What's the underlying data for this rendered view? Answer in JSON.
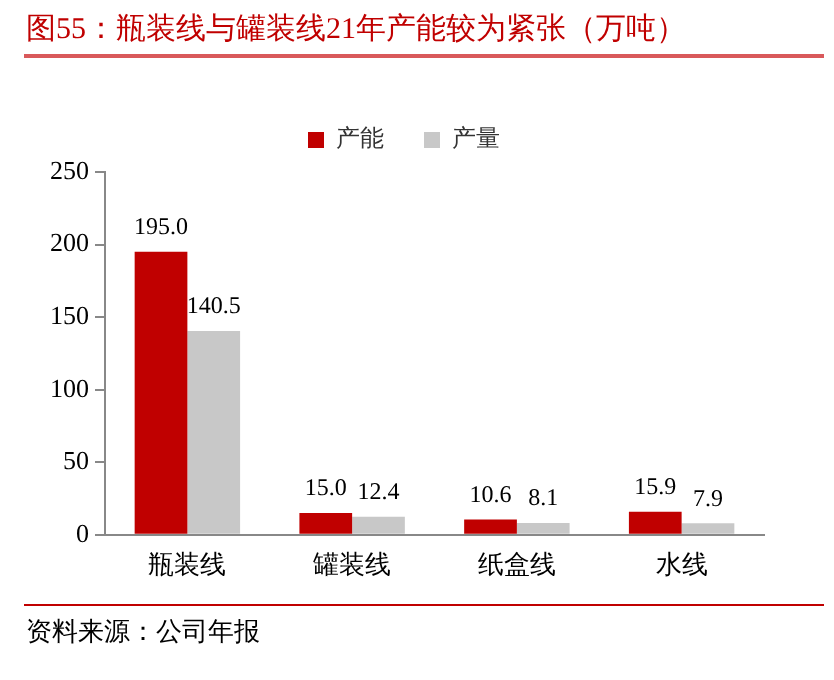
{
  "chart_data": {
    "type": "bar",
    "title": "图55：瓶装线与罐装线21年产能较为紧张（万吨）",
    "categories": [
      "瓶装线",
      "罐装线",
      "纸盒线",
      "水线"
    ],
    "series": [
      {
        "name": "产能",
        "color": "#c00000",
        "values": [
          195.0,
          15.0,
          10.6,
          15.9
        ],
        "value_labels": [
          "195.0",
          "15.0",
          "10.6",
          "15.9"
        ]
      },
      {
        "name": "产量",
        "color": "#c8c8c8",
        "values": [
          140.5,
          12.4,
          8.1,
          7.9
        ],
        "value_labels": [
          "140.5",
          "12.4",
          "8.1",
          "7.9"
        ]
      }
    ],
    "ylim": [
      0,
      250
    ],
    "yticks": [
      0,
      50,
      100,
      150,
      200,
      250
    ],
    "grid": false,
    "legend": "top",
    "annotations": [
      "资料来源：公司年报"
    ]
  }
}
